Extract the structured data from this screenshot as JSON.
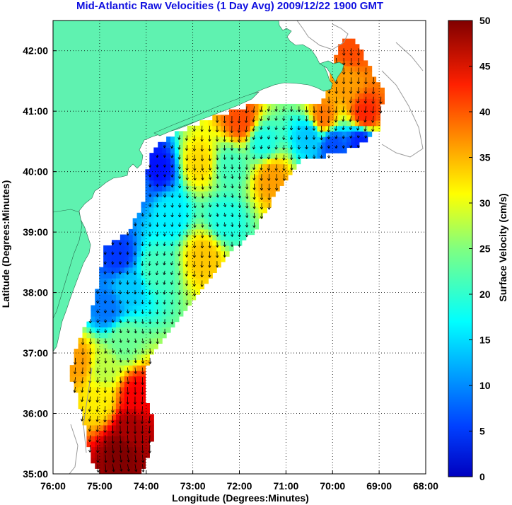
{
  "title": "Mid-Atlantic Raw Velocities (1 Day Avg) 2009/12/22 1900 GMT",
  "colors": {
    "land": "#5ff2b0",
    "background": "#ffffff",
    "title": "#1010e0",
    "grid": "#000000",
    "bathymetry": "#999999"
  },
  "chart_data": {
    "type": "heatmap",
    "title": "Mid-Atlantic Raw Velocities (1 Day Avg) 2009/12/22 1900 GMT",
    "xlabel": "Longitude (Degrees:Minutes)",
    "ylabel": "Latitude (Degrees:Minutes)",
    "xlim": [
      -76,
      -68
    ],
    "ylim": [
      35,
      42.5
    ],
    "grid": true,
    "x_ticks": [
      {
        "value": -76,
        "label": "76:00"
      },
      {
        "value": -75,
        "label": "75:00"
      },
      {
        "value": -74,
        "label": "74:00"
      },
      {
        "value": -73,
        "label": "73:00"
      },
      {
        "value": -72,
        "label": "72:00"
      },
      {
        "value": -71,
        "label": "71:00"
      },
      {
        "value": -70,
        "label": "70:00"
      },
      {
        "value": -69,
        "label": "69:00"
      },
      {
        "value": -68,
        "label": "68:00"
      }
    ],
    "y_ticks": [
      {
        "value": 35,
        "label": "35:00"
      },
      {
        "value": 36,
        "label": "36:00"
      },
      {
        "value": 37,
        "label": "37:00"
      },
      {
        "value": 38,
        "label": "38:00"
      },
      {
        "value": 39,
        "label": "39:00"
      },
      {
        "value": 40,
        "label": "40:00"
      },
      {
        "value": 41,
        "label": "41:00"
      },
      {
        "value": 42,
        "label": "42:00"
      }
    ],
    "colorbar": {
      "label": "Surface Velocity (cm/s)",
      "min": 0,
      "max": 50,
      "ticks": [
        0,
        5,
        10,
        15,
        20,
        25,
        30,
        35,
        40,
        45,
        50
      ],
      "colormap": "jet"
    },
    "coverage_polygon": [
      [
        -74.1,
        35.0
      ],
      [
        -73.9,
        35.4
      ],
      [
        -73.85,
        35.9
      ],
      [
        -74.05,
        36.3
      ],
      [
        -74.0,
        36.8
      ],
      [
        -73.6,
        37.3
      ],
      [
        -73.0,
        37.9
      ],
      [
        -72.6,
        38.3
      ],
      [
        -72.2,
        38.7
      ],
      [
        -71.7,
        39.0
      ],
      [
        -71.4,
        39.4
      ],
      [
        -71.0,
        39.9
      ],
      [
        -70.7,
        40.2
      ],
      [
        -70.2,
        40.25
      ],
      [
        -69.5,
        40.4
      ],
      [
        -69.0,
        40.7
      ],
      [
        -68.9,
        41.3
      ],
      [
        -69.2,
        41.7
      ],
      [
        -69.5,
        42.15
      ],
      [
        -69.8,
        42.2
      ],
      [
        -70.0,
        41.7
      ],
      [
        -70.15,
        41.2
      ],
      [
        -70.5,
        41.1
      ],
      [
        -71.0,
        41.1
      ],
      [
        -71.8,
        41.1
      ],
      [
        -72.4,
        40.95
      ],
      [
        -73.0,
        40.75
      ],
      [
        -73.7,
        40.5
      ],
      [
        -73.95,
        40.2
      ],
      [
        -74.0,
        39.8
      ],
      [
        -74.1,
        39.4
      ],
      [
        -74.4,
        39.0
      ],
      [
        -74.9,
        38.75
      ],
      [
        -75.0,
        38.2
      ],
      [
        -75.2,
        37.6
      ],
      [
        -75.5,
        37.1
      ],
      [
        -75.65,
        36.6
      ],
      [
        -75.45,
        36.2
      ],
      [
        -75.3,
        35.7
      ],
      [
        -75.15,
        35.2
      ],
      [
        -75.0,
        35.0
      ]
    ],
    "velocity_field_points": [
      {
        "lon": -74.55,
        "lat": 35.35,
        "speed": 50
      },
      {
        "lon": -74.35,
        "lat": 35.75,
        "speed": 48
      },
      {
        "lon": -74.2,
        "lat": 36.3,
        "speed": 44
      },
      {
        "lon": -75.0,
        "lat": 36.2,
        "speed": 32
      },
      {
        "lon": -74.9,
        "lat": 36.75,
        "speed": 28
      },
      {
        "lon": -75.45,
        "lat": 36.85,
        "speed": 36
      },
      {
        "lon": -74.5,
        "lat": 37.2,
        "speed": 24
      },
      {
        "lon": -74.85,
        "lat": 37.75,
        "speed": 12
      },
      {
        "lon": -74.4,
        "lat": 38.1,
        "speed": 16
      },
      {
        "lon": -74.6,
        "lat": 38.6,
        "speed": 9
      },
      {
        "lon": -73.8,
        "lat": 38.4,
        "speed": 22
      },
      {
        "lon": -72.75,
        "lat": 38.6,
        "speed": 34
      },
      {
        "lon": -72.3,
        "lat": 39.2,
        "speed": 20
      },
      {
        "lon": -73.5,
        "lat": 39.3,
        "speed": 18
      },
      {
        "lon": -74.2,
        "lat": 39.8,
        "speed": 12
      },
      {
        "lon": -73.75,
        "lat": 40.05,
        "speed": 7
      },
      {
        "lon": -72.85,
        "lat": 40.15,
        "speed": 33
      },
      {
        "lon": -72.2,
        "lat": 40.1,
        "speed": 22
      },
      {
        "lon": -71.3,
        "lat": 39.9,
        "speed": 36
      },
      {
        "lon": -71.5,
        "lat": 40.5,
        "speed": 20
      },
      {
        "lon": -71.95,
        "lat": 40.85,
        "speed": 40
      },
      {
        "lon": -70.5,
        "lat": 40.6,
        "speed": 16
      },
      {
        "lon": -70.0,
        "lat": 40.45,
        "speed": 10
      },
      {
        "lon": -69.4,
        "lat": 40.5,
        "speed": 8
      },
      {
        "lon": -70.2,
        "lat": 40.9,
        "speed": 38
      },
      {
        "lon": -69.3,
        "lat": 40.95,
        "speed": 42
      },
      {
        "lon": -69.7,
        "lat": 41.5,
        "speed": 36
      },
      {
        "lon": -69.6,
        "lat": 42.0,
        "speed": 40
      }
    ],
    "vector_direction": "predominantly south / southwest, with eddies near the shelf break"
  }
}
